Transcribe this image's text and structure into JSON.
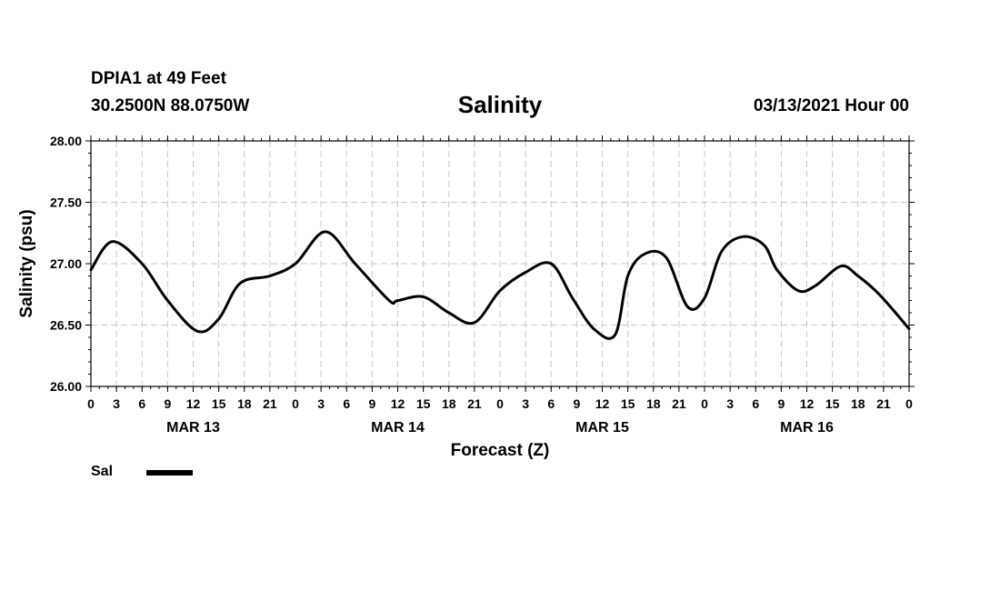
{
  "header": {
    "station": "DPIA1 at 49 Feet",
    "coords": "30.2500N 88.0750W",
    "datetime": "03/13/2021 Hour 00"
  },
  "chart_data": {
    "type": "line",
    "title": "Salinity",
    "xlabel": "Forecast (Z)",
    "ylabel": "Salinity (psu)",
    "xlim": [
      0,
      96
    ],
    "ylim": [
      26.0,
      28.0
    ],
    "yticks": [
      "28.00",
      "27.50",
      "27.00",
      "26.50",
      "26.00"
    ],
    "xtick_labels": [
      "0",
      "3",
      "6",
      "9",
      "12",
      "15",
      "18",
      "21",
      "0",
      "3",
      "6",
      "9",
      "12",
      "15",
      "18",
      "21",
      "0",
      "3",
      "6",
      "9",
      "12",
      "15",
      "18",
      "21",
      "0",
      "3",
      "6",
      "9",
      "12",
      "15",
      "18",
      "21",
      "0"
    ],
    "day_labels": [
      {
        "label": "MAR 13",
        "hour": 12
      },
      {
        "label": "MAR 14",
        "hour": 36
      },
      {
        "label": "MAR 15",
        "hour": 60
      },
      {
        "label": "MAR 16",
        "hour": 84
      }
    ],
    "grid": true,
    "legend": {
      "placement": "bottom-left"
    },
    "series": [
      {
        "name": "Sal",
        "color": "#000000",
        "x": [
          0,
          2.5,
          6,
          9,
          12.5,
          15,
          17.5,
          21,
          24,
          27.5,
          31,
          35,
          36,
          39,
          42,
          45,
          48,
          51,
          54,
          56.5,
          59,
          61.5,
          63,
          65,
          67.5,
          70,
          72,
          74,
          76.5,
          79,
          80.5,
          83,
          85,
          88,
          90,
          92.5,
          96
        ],
        "y": [
          26.95,
          27.18,
          27.0,
          26.7,
          26.45,
          26.55,
          26.84,
          26.9,
          27.0,
          27.26,
          27.0,
          26.7,
          26.7,
          26.73,
          26.6,
          26.52,
          26.78,
          26.93,
          27.0,
          26.72,
          26.47,
          26.42,
          26.9,
          27.08,
          27.05,
          26.65,
          26.72,
          27.1,
          27.22,
          27.15,
          26.95,
          26.78,
          26.82,
          26.98,
          26.9,
          26.75,
          26.47
        ]
      }
    ]
  }
}
